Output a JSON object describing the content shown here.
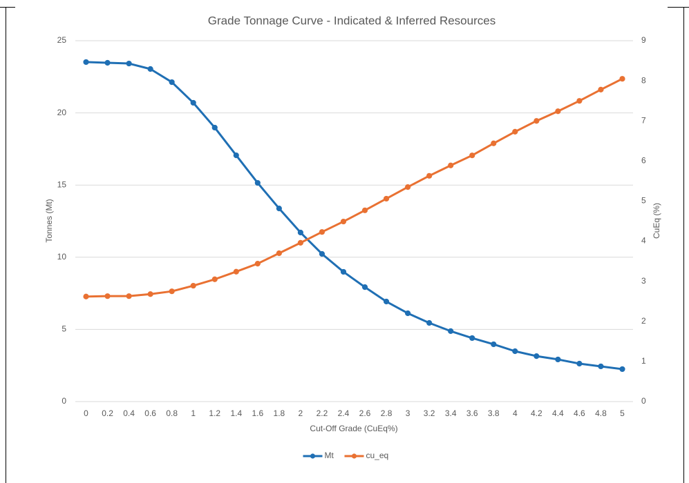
{
  "chart_data": {
    "type": "line",
    "title": "Grade Tonnage Curve - Indicated & Inferred Resources",
    "x_label": "Cut-Off Grade (CuEq%)",
    "y_label": "Tonnes (Mt)",
    "y2_label": "CuEq (%)",
    "categories": [
      "0",
      "0.2",
      "0.4",
      "0.6",
      "0.8",
      "1",
      "1.2",
      "1.4",
      "1.6",
      "1.8",
      "2",
      "2.2",
      "2.4",
      "2.6",
      "2.8",
      "3",
      "3.2",
      "3.4",
      "3.6",
      "3.8",
      "4",
      "4.2",
      "4.4",
      "4.6",
      "4.8",
      "5"
    ],
    "series": [
      {
        "name": "Mt",
        "color": "#1f6fb4",
        "values": [
          23.52,
          23.47,
          23.42,
          23.04,
          22.13,
          20.7,
          18.98,
          17.06,
          15.15,
          13.38,
          11.71,
          10.23,
          8.99,
          7.93,
          6.93,
          6.12,
          5.45,
          4.88,
          4.4,
          3.97,
          3.49,
          3.15,
          2.92,
          2.63,
          2.44,
          2.25
        ]
      },
      {
        "name": "cu_eq",
        "color": "#e97132",
        "axis": "y2",
        "values": [
          2.62,
          2.63,
          2.63,
          2.68,
          2.75,
          2.89,
          3.05,
          3.24,
          3.44,
          3.7,
          3.96,
          4.23,
          4.49,
          4.77,
          5.06,
          5.35,
          5.63,
          5.89,
          6.14,
          6.44,
          6.73,
          7.0,
          7.24,
          7.5,
          7.78,
          8.05
        ]
      }
    ],
    "ylim": [
      0,
      25
    ],
    "yticks": [
      0,
      5,
      10,
      15,
      20,
      25
    ],
    "y2lim": [
      0,
      9
    ],
    "y2ticks": [
      0,
      1,
      2,
      3,
      4,
      5,
      6,
      7,
      8,
      9
    ],
    "grid": true,
    "legend": "bottom"
  }
}
